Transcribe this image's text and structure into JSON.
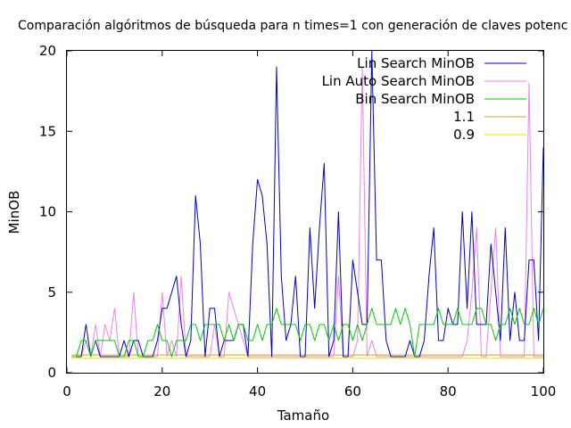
{
  "chart_data": {
    "type": "line",
    "title": "Comparación algóritmos de búsqueda para n times=1 con generación de claves potenc",
    "xlabel": "Tamaño",
    "ylabel": "MinOB",
    "xlim": [
      0,
      100
    ],
    "ylim": [
      0,
      20
    ],
    "xticks": [
      0,
      20,
      40,
      60,
      80,
      100
    ],
    "yticks": [
      0,
      5,
      10,
      15,
      20
    ],
    "legend_position": "top-right",
    "grid": false,
    "series": [
      {
        "name": "Lin Search MinOB",
        "color": "#0000cc",
        "x": [
          1,
          2,
          3,
          4,
          5,
          6,
          7,
          8,
          9,
          10,
          11,
          12,
          13,
          14,
          15,
          16,
          17,
          18,
          19,
          20,
          21,
          22,
          23,
          24,
          25,
          26,
          27,
          28,
          29,
          30,
          31,
          32,
          33,
          34,
          35,
          36,
          37,
          38,
          39,
          40,
          41,
          42,
          43,
          44,
          45,
          46,
          47,
          48,
          49,
          50,
          51,
          52,
          53,
          54,
          55,
          56,
          57,
          58,
          59,
          60,
          61,
          62,
          63,
          64,
          65,
          66,
          67,
          68,
          69,
          70,
          71,
          72,
          73,
          74,
          75,
          76,
          77,
          78,
          79,
          80,
          81,
          82,
          83,
          84,
          85,
          86,
          87,
          88,
          89,
          90,
          91,
          92,
          93,
          94,
          95,
          96,
          97,
          98,
          99,
          100
        ],
        "y": [
          1,
          1,
          1,
          3,
          1,
          2,
          1,
          1,
          1,
          1,
          1,
          2,
          1,
          2,
          2,
          1,
          1,
          1,
          2,
          4,
          4,
          5,
          6,
          3,
          1,
          2,
          11,
          8,
          1,
          4,
          4,
          1,
          2,
          2,
          2,
          3,
          3,
          1,
          8,
          12,
          11,
          8,
          1,
          19,
          6,
          2,
          3,
          6,
          1,
          1,
          9,
          4,
          9,
          13,
          1,
          2,
          10,
          1,
          1,
          7,
          5,
          3,
          3,
          20,
          7,
          7,
          2,
          1,
          1,
          1,
          1,
          2,
          1,
          1,
          2,
          6,
          9,
          2,
          2,
          4,
          3,
          3,
          10,
          4,
          10,
          3,
          3,
          3,
          8,
          5,
          2,
          9,
          2,
          5,
          2,
          2,
          7,
          7,
          2,
          14
        ]
      },
      {
        "name": "Lin Auto Search MinOB",
        "color": "#ee82ee",
        "x": [
          1,
          2,
          3,
          4,
          5,
          6,
          7,
          8,
          9,
          10,
          11,
          12,
          13,
          14,
          15,
          16,
          17,
          18,
          19,
          20,
          21,
          22,
          23,
          24,
          25,
          26,
          27,
          28,
          29,
          30,
          31,
          32,
          33,
          34,
          35,
          36,
          37,
          38,
          39,
          40,
          41,
          42,
          43,
          44,
          45,
          46,
          47,
          48,
          49,
          50,
          51,
          52,
          53,
          54,
          55,
          56,
          57,
          58,
          59,
          60,
          61,
          62,
          63,
          64,
          65,
          66,
          67,
          68,
          69,
          70,
          71,
          72,
          73,
          74,
          75,
          76,
          77,
          78,
          79,
          80,
          81,
          82,
          83,
          84,
          85,
          86,
          87,
          88,
          89,
          90,
          91,
          92,
          93,
          94,
          95,
          96,
          97,
          98,
          99,
          100
        ],
        "y": [
          1,
          1,
          1,
          2,
          1,
          3,
          1,
          3,
          2,
          4,
          1,
          1,
          1,
          5,
          1,
          1,
          1,
          1,
          1,
          5,
          1,
          2,
          1,
          6,
          1,
          1,
          1,
          1,
          1,
          1,
          3,
          1,
          1,
          5,
          4,
          3,
          2,
          1,
          1,
          1,
          1,
          1,
          1,
          1,
          1,
          1,
          1,
          1,
          1,
          1,
          1,
          1,
          1,
          1,
          1,
          1,
          6,
          1,
          1,
          1,
          2,
          19,
          1,
          2,
          1,
          1,
          1,
          1,
          1,
          1,
          1,
          1,
          1,
          1,
          1,
          1,
          1,
          1,
          1,
          1,
          1,
          1,
          1,
          2,
          5,
          9,
          1,
          1,
          5,
          9,
          1,
          1,
          1,
          1,
          1,
          1,
          18,
          1,
          1,
          1
        ]
      },
      {
        "name": "Bin Search MinOB",
        "color": "#00cc00",
        "x": [
          1,
          2,
          3,
          4,
          5,
          6,
          7,
          8,
          9,
          10,
          11,
          12,
          13,
          14,
          15,
          16,
          17,
          18,
          19,
          20,
          21,
          22,
          23,
          24,
          25,
          26,
          27,
          28,
          29,
          30,
          31,
          32,
          33,
          34,
          35,
          36,
          37,
          38,
          39,
          40,
          41,
          42,
          43,
          44,
          45,
          46,
          47,
          48,
          49,
          50,
          51,
          52,
          53,
          54,
          55,
          56,
          57,
          58,
          59,
          60,
          61,
          62,
          63,
          64,
          65,
          66,
          67,
          68,
          69,
          70,
          71,
          72,
          73,
          74,
          75,
          76,
          77,
          78,
          79,
          80,
          81,
          82,
          83,
          84,
          85,
          86,
          87,
          88,
          89,
          90,
          91,
          92,
          93,
          94,
          95,
          96,
          97,
          98,
          99,
          100
        ],
        "y": [
          1,
          1,
          2,
          2,
          1,
          2,
          2,
          2,
          2,
          2,
          1,
          1,
          2,
          2,
          1,
          1,
          2,
          2,
          3,
          2,
          2,
          1,
          2,
          2,
          2,
          3,
          3,
          2,
          3,
          3,
          3,
          3,
          2,
          3,
          2,
          3,
          3,
          2,
          2,
          3,
          2,
          3,
          3,
          4,
          3,
          3,
          3,
          3,
          2,
          3,
          3,
          2,
          3,
          3,
          2,
          3,
          2,
          3,
          3,
          2,
          3,
          2,
          3,
          4,
          3,
          3,
          3,
          3,
          4,
          3,
          4,
          3,
          1,
          3,
          3,
          3,
          3,
          4,
          3,
          3,
          3,
          4,
          3,
          3,
          3,
          4,
          4,
          3,
          3,
          2,
          3,
          3,
          4,
          3,
          4,
          3,
          3,
          4,
          3,
          4
        ]
      },
      {
        "name": "1.1",
        "color": "#d4a017",
        "x": [
          1,
          100
        ],
        "y": [
          1.1,
          1.1
        ]
      },
      {
        "name": "0.9",
        "color": "#e6e600",
        "x": [
          1,
          100
        ],
        "y": [
          0.9,
          0.9
        ]
      }
    ]
  }
}
